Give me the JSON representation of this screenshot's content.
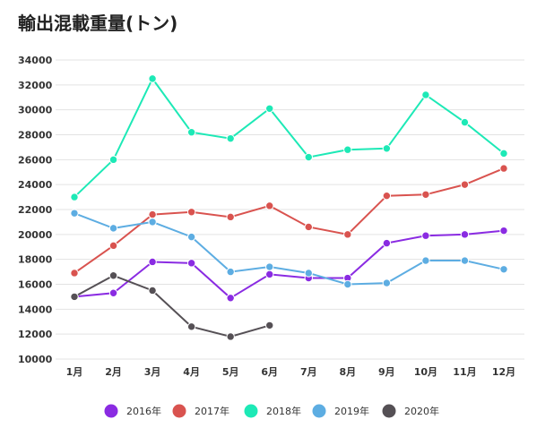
{
  "chart_data": {
    "type": "line",
    "title": "輸出混載重量(トン)",
    "xlabel": "",
    "ylabel": "",
    "categories": [
      "1月",
      "2月",
      "3月",
      "4月",
      "5月",
      "6月",
      "7月",
      "8月",
      "9月",
      "10月",
      "11月",
      "12月"
    ],
    "ylim": [
      10000,
      34000
    ],
    "yticks": [
      10000,
      12000,
      14000,
      16000,
      18000,
      20000,
      22000,
      24000,
      26000,
      28000,
      30000,
      32000,
      34000
    ],
    "grid": true,
    "legend_position": "bottom",
    "series": [
      {
        "name": "2016年",
        "color": "#8a2be2",
        "values": [
          15000,
          15300,
          17800,
          17700,
          14900,
          16800,
          16500,
          16500,
          19300,
          19900,
          20000,
          20300
        ]
      },
      {
        "name": "2017年",
        "color": "#d9534f",
        "values": [
          16900,
          19100,
          21600,
          21800,
          21400,
          22300,
          20600,
          20000,
          23100,
          23200,
          24000,
          25300
        ]
      },
      {
        "name": "2018年",
        "color": "#1de9b6",
        "values": [
          23000,
          26000,
          32500,
          28200,
          27700,
          30100,
          26200,
          26800,
          26900,
          31200,
          29000,
          26500
        ]
      },
      {
        "name": "2019年",
        "color": "#5dade2",
        "values": [
          21700,
          20500,
          21000,
          19800,
          17000,
          17400,
          16900,
          16000,
          16100,
          17900,
          17900,
          17200
        ]
      },
      {
        "name": "2020年",
        "color": "#555055",
        "values": [
          15000,
          16700,
          15500,
          12600,
          11800,
          12700,
          null,
          null,
          null,
          null,
          null,
          null
        ]
      }
    ]
  }
}
